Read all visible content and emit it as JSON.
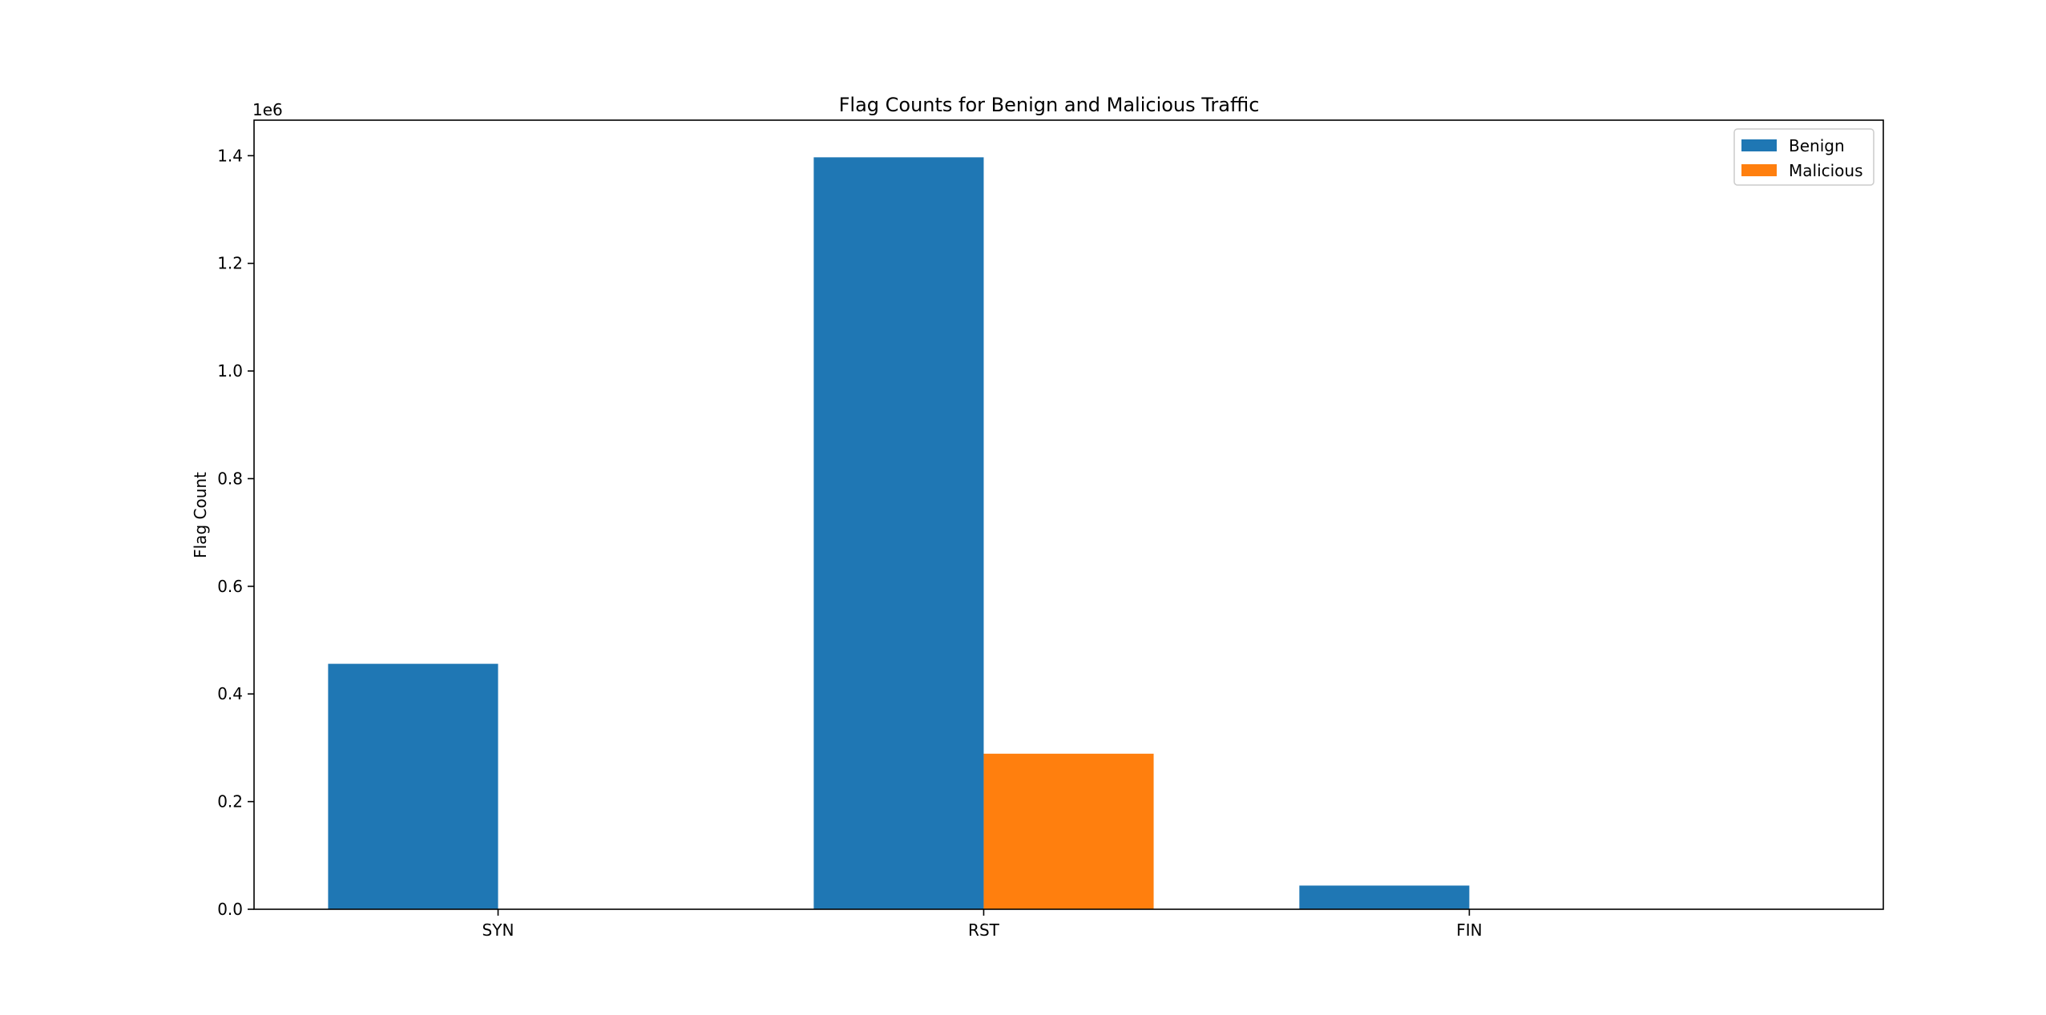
{
  "chart_data": {
    "type": "bar",
    "title": "Flag Counts for Benign and Malicious Traffic",
    "xlabel": "",
    "ylabel": "Flag Count",
    "offset_label": "1e6",
    "categories": [
      "SYN",
      "RST",
      "FIN"
    ],
    "series": [
      {
        "name": "Benign",
        "color": "#1f77b4",
        "values": [
          456000,
          1397000,
          44000
        ]
      },
      {
        "name": "Malicious",
        "color": "#ff7f0e",
        "values": [
          0,
          289000,
          0
        ]
      }
    ],
    "ylim": [
      0,
      1466000
    ],
    "yticks": [
      0,
      200000,
      400000,
      600000,
      800000,
      1000000,
      1200000,
      1400000
    ],
    "ytick_labels": [
      "0.0",
      "0.2",
      "0.4",
      "0.6",
      "0.8",
      "1.0",
      "1.2",
      "1.4"
    ],
    "grid": false,
    "legend_position": "top-right"
  }
}
